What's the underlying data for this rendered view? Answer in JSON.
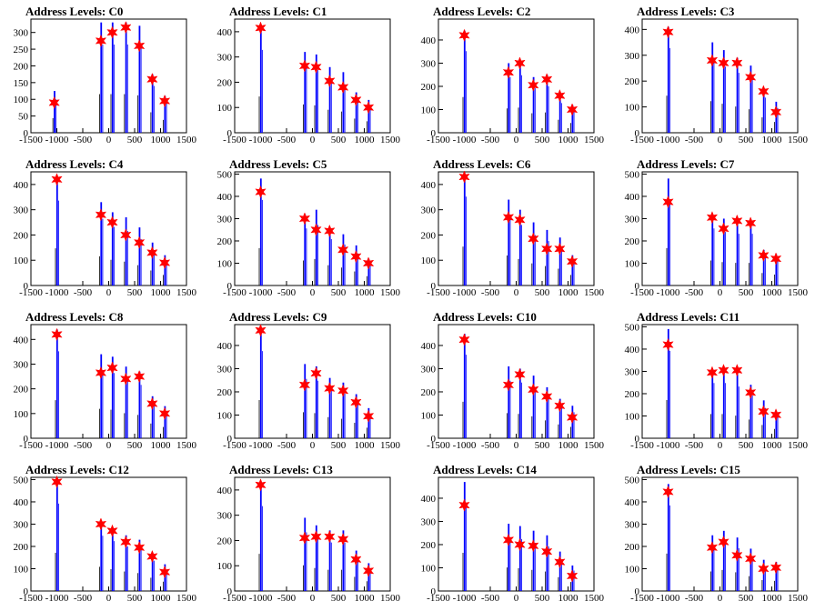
{
  "chart_data": [
    {
      "type": "histogram",
      "title": "Address Levels: C0",
      "xlim": [
        -1500,
        1500
      ],
      "ylim": [
        0,
        340
      ],
      "yticks": [
        0,
        50,
        100,
        150,
        200,
        250,
        300
      ],
      "xticks": [
        -1500,
        -1000,
        -500,
        0,
        500,
        1000,
        1500
      ],
      "peaks": [
        {
          "x": -1050,
          "height": 125,
          "marker": 90
        },
        {
          "x": -150,
          "height": 330,
          "marker": 275
        },
        {
          "x": 70,
          "height": 330,
          "marker": 300
        },
        {
          "x": 330,
          "height": 330,
          "marker": 315
        },
        {
          "x": 590,
          "height": 320,
          "marker": 260
        },
        {
          "x": 840,
          "height": 175,
          "marker": 160
        },
        {
          "x": 1080,
          "height": 110,
          "marker": 95
        }
      ]
    },
    {
      "type": "histogram",
      "title": "Address Levels: C1",
      "xlim": [
        -1500,
        1500
      ],
      "ylim": [
        0,
        450
      ],
      "yticks": [
        0,
        100,
        200,
        300,
        400
      ],
      "xticks": [
        -1500,
        -1000,
        -500,
        0,
        500,
        1000,
        1500
      ],
      "peaks": [
        {
          "x": -1000,
          "height": 410,
          "marker": 415
        },
        {
          "x": -150,
          "height": 320,
          "marker": 265
        },
        {
          "x": 70,
          "height": 310,
          "marker": 260
        },
        {
          "x": 330,
          "height": 260,
          "marker": 205
        },
        {
          "x": 590,
          "height": 240,
          "marker": 180
        },
        {
          "x": 840,
          "height": 160,
          "marker": 130
        },
        {
          "x": 1080,
          "height": 130,
          "marker": 100
        }
      ]
    },
    {
      "type": "histogram",
      "title": "Address Levels: C2",
      "xlim": [
        -1500,
        1500
      ],
      "ylim": [
        0,
        490
      ],
      "yticks": [
        0,
        100,
        200,
        300,
        400
      ],
      "xticks": [
        -1500,
        -1000,
        -500,
        0,
        500,
        1000,
        1500
      ],
      "peaks": [
        {
          "x": -1000,
          "height": 440,
          "marker": 420
        },
        {
          "x": -150,
          "height": 300,
          "marker": 260
        },
        {
          "x": 70,
          "height": 310,
          "marker": 300
        },
        {
          "x": 330,
          "height": 240,
          "marker": 205
        },
        {
          "x": 590,
          "height": 250,
          "marker": 230
        },
        {
          "x": 840,
          "height": 160,
          "marker": 160
        },
        {
          "x": 1080,
          "height": 120,
          "marker": 100
        }
      ]
    },
    {
      "type": "histogram",
      "title": "Address Levels: C3",
      "xlim": [
        -1500,
        1500
      ],
      "ylim": [
        0,
        440
      ],
      "yticks": [
        0,
        100,
        200,
        300,
        400
      ],
      "xticks": [
        -1500,
        -1000,
        -500,
        0,
        500,
        1000,
        1500
      ],
      "peaks": [
        {
          "x": -1000,
          "height": 410,
          "marker": 390
        },
        {
          "x": -150,
          "height": 350,
          "marker": 280
        },
        {
          "x": 70,
          "height": 320,
          "marker": 270
        },
        {
          "x": 330,
          "height": 290,
          "marker": 270
        },
        {
          "x": 590,
          "height": 260,
          "marker": 215
        },
        {
          "x": 840,
          "height": 170,
          "marker": 160
        },
        {
          "x": 1080,
          "height": 120,
          "marker": 80
        }
      ]
    },
    {
      "type": "histogram",
      "title": "Address Levels: C4",
      "xlim": [
        -1500,
        1500
      ],
      "ylim": [
        0,
        450
      ],
      "yticks": [
        0,
        100,
        200,
        300,
        400
      ],
      "xticks": [
        -1500,
        -1000,
        -500,
        0,
        500,
        1000,
        1500
      ],
      "peaks": [
        {
          "x": -1000,
          "height": 420,
          "marker": 420
        },
        {
          "x": -150,
          "height": 330,
          "marker": 280
        },
        {
          "x": 70,
          "height": 290,
          "marker": 250
        },
        {
          "x": 330,
          "height": 270,
          "marker": 200
        },
        {
          "x": 590,
          "height": 230,
          "marker": 170
        },
        {
          "x": 840,
          "height": 170,
          "marker": 130
        },
        {
          "x": 1080,
          "height": 120,
          "marker": 90
        }
      ]
    },
    {
      "type": "histogram",
      "title": "Address Levels: C5",
      "xlim": [
        -1500,
        1500
      ],
      "ylim": [
        0,
        510
      ],
      "yticks": [
        0,
        100,
        200,
        300,
        400,
        500
      ],
      "xticks": [
        -1500,
        -1000,
        -500,
        0,
        500,
        1000,
        1500
      ],
      "peaks": [
        {
          "x": -1000,
          "height": 480,
          "marker": 420
        },
        {
          "x": -150,
          "height": 320,
          "marker": 300
        },
        {
          "x": 70,
          "height": 340,
          "marker": 250
        },
        {
          "x": 330,
          "height": 260,
          "marker": 245
        },
        {
          "x": 590,
          "height": 230,
          "marker": 160
        },
        {
          "x": 840,
          "height": 180,
          "marker": 130
        },
        {
          "x": 1080,
          "height": 120,
          "marker": 100
        }
      ]
    },
    {
      "type": "histogram",
      "title": "Address Levels: C6",
      "xlim": [
        -1500,
        1500
      ],
      "ylim": [
        0,
        450
      ],
      "yticks": [
        0,
        100,
        200,
        300,
        400
      ],
      "xticks": [
        -1500,
        -1000,
        -500,
        0,
        500,
        1000,
        1500
      ],
      "peaks": [
        {
          "x": -1000,
          "height": 440,
          "marker": 430
        },
        {
          "x": -150,
          "height": 340,
          "marker": 270
        },
        {
          "x": 70,
          "height": 300,
          "marker": 260
        },
        {
          "x": 330,
          "height": 250,
          "marker": 185
        },
        {
          "x": 590,
          "height": 220,
          "marker": 145
        },
        {
          "x": 840,
          "height": 190,
          "marker": 145
        },
        {
          "x": 1080,
          "height": 120,
          "marker": 95
        }
      ]
    },
    {
      "type": "histogram",
      "title": "Address Levels: C7",
      "xlim": [
        -1500,
        1500
      ],
      "ylim": [
        0,
        510
      ],
      "yticks": [
        0,
        100,
        200,
        300,
        400,
        500
      ],
      "xticks": [
        -1500,
        -1000,
        -500,
        0,
        500,
        1000,
        1500
      ],
      "peaks": [
        {
          "x": -1000,
          "height": 480,
          "marker": 375
        },
        {
          "x": -150,
          "height": 320,
          "marker": 305
        },
        {
          "x": 70,
          "height": 300,
          "marker": 255
        },
        {
          "x": 330,
          "height": 290,
          "marker": 290
        },
        {
          "x": 590,
          "height": 290,
          "marker": 280
        },
        {
          "x": 840,
          "height": 160,
          "marker": 135
        },
        {
          "x": 1080,
          "height": 140,
          "marker": 120
        }
      ]
    },
    {
      "type": "histogram",
      "title": "Address Levels: C8",
      "xlim": [
        -1500,
        1500
      ],
      "ylim": [
        0,
        460
      ],
      "yticks": [
        0,
        100,
        200,
        300,
        400
      ],
      "xticks": [
        -1500,
        -1000,
        -500,
        0,
        500,
        1000,
        1500
      ],
      "peaks": [
        {
          "x": -1000,
          "height": 440,
          "marker": 420
        },
        {
          "x": -150,
          "height": 340,
          "marker": 265
        },
        {
          "x": 70,
          "height": 330,
          "marker": 285
        },
        {
          "x": 330,
          "height": 290,
          "marker": 240
        },
        {
          "x": 590,
          "height": 270,
          "marker": 250
        },
        {
          "x": 840,
          "height": 170,
          "marker": 140
        },
        {
          "x": 1080,
          "height": 130,
          "marker": 100
        }
      ]
    },
    {
      "type": "histogram",
      "title": "Address Levels: C9",
      "xlim": [
        -1500,
        1500
      ],
      "ylim": [
        0,
        490
      ],
      "yticks": [
        0,
        100,
        200,
        300,
        400
      ],
      "xticks": [
        -1500,
        -1000,
        -500,
        0,
        500,
        1000,
        1500
      ],
      "peaks": [
        {
          "x": -1000,
          "height": 470,
          "marker": 465
        },
        {
          "x": -150,
          "height": 320,
          "marker": 230
        },
        {
          "x": 70,
          "height": 310,
          "marker": 280
        },
        {
          "x": 330,
          "height": 260,
          "marker": 215
        },
        {
          "x": 590,
          "height": 240,
          "marker": 205
        },
        {
          "x": 840,
          "height": 190,
          "marker": 155
        },
        {
          "x": 1080,
          "height": 130,
          "marker": 95
        }
      ]
    },
    {
      "type": "histogram",
      "title": "Address Levels: C10",
      "xlim": [
        -1500,
        1500
      ],
      "ylim": [
        0,
        490
      ],
      "yticks": [
        0,
        100,
        200,
        300,
        400
      ],
      "xticks": [
        -1500,
        -1000,
        -500,
        0,
        500,
        1000,
        1500
      ],
      "peaks": [
        {
          "x": -1000,
          "height": 450,
          "marker": 425
        },
        {
          "x": -150,
          "height": 310,
          "marker": 230
        },
        {
          "x": 70,
          "height": 300,
          "marker": 275
        },
        {
          "x": 330,
          "height": 270,
          "marker": 210
        },
        {
          "x": 590,
          "height": 220,
          "marker": 180
        },
        {
          "x": 840,
          "height": 170,
          "marker": 140
        },
        {
          "x": 1080,
          "height": 140,
          "marker": 90
        }
      ]
    },
    {
      "type": "histogram",
      "title": "Address Levels: C11",
      "xlim": [
        -1500,
        1500
      ],
      "ylim": [
        0,
        510
      ],
      "yticks": [
        0,
        100,
        200,
        300,
        400,
        500
      ],
      "xticks": [
        -1500,
        -1000,
        -500,
        0,
        500,
        1000,
        1500
      ],
      "peaks": [
        {
          "x": -1000,
          "height": 490,
          "marker": 420
        },
        {
          "x": -150,
          "height": 310,
          "marker": 295
        },
        {
          "x": 70,
          "height": 310,
          "marker": 305
        },
        {
          "x": 330,
          "height": 290,
          "marker": 305
        },
        {
          "x": 590,
          "height": 240,
          "marker": 205
        },
        {
          "x": 840,
          "height": 170,
          "marker": 120
        },
        {
          "x": 1080,
          "height": 120,
          "marker": 105
        }
      ]
    },
    {
      "type": "histogram",
      "title": "Address Levels: C12",
      "xlim": [
        -1500,
        1500
      ],
      "ylim": [
        0,
        510
      ],
      "yticks": [
        0,
        100,
        200,
        300,
        400,
        500
      ],
      "xticks": [
        -1500,
        -1000,
        -500,
        0,
        500,
        1000,
        1500
      ],
      "peaks": [
        {
          "x": -1000,
          "height": 490,
          "marker": 490
        },
        {
          "x": -150,
          "height": 310,
          "marker": 300
        },
        {
          "x": 70,
          "height": 280,
          "marker": 270
        },
        {
          "x": 330,
          "height": 250,
          "marker": 220
        },
        {
          "x": 590,
          "height": 230,
          "marker": 195
        },
        {
          "x": 840,
          "height": 170,
          "marker": 155
        },
        {
          "x": 1080,
          "height": 120,
          "marker": 85
        }
      ]
    },
    {
      "type": "histogram",
      "title": "Address Levels: C13",
      "xlim": [
        -1500,
        1500
      ],
      "ylim": [
        0,
        450
      ],
      "yticks": [
        0,
        100,
        200,
        300,
        400
      ],
      "xticks": [
        -1500,
        -1000,
        -500,
        0,
        500,
        1000,
        1500
      ],
      "peaks": [
        {
          "x": -1000,
          "height": 420,
          "marker": 420
        },
        {
          "x": -150,
          "height": 290,
          "marker": 210
        },
        {
          "x": 70,
          "height": 260,
          "marker": 215
        },
        {
          "x": 330,
          "height": 240,
          "marker": 215
        },
        {
          "x": 590,
          "height": 240,
          "marker": 205
        },
        {
          "x": 840,
          "height": 160,
          "marker": 125
        },
        {
          "x": 1080,
          "height": 110,
          "marker": 80
        }
      ]
    },
    {
      "type": "histogram",
      "title": "Address Levels: C14",
      "xlim": [
        -1500,
        1500
      ],
      "ylim": [
        0,
        490
      ],
      "yticks": [
        0,
        100,
        200,
        300,
        400
      ],
      "xticks": [
        -1500,
        -1000,
        -500,
        0,
        500,
        1000,
        1500
      ],
      "peaks": [
        {
          "x": -1000,
          "height": 470,
          "marker": 370
        },
        {
          "x": -150,
          "height": 290,
          "marker": 220
        },
        {
          "x": 70,
          "height": 280,
          "marker": 200
        },
        {
          "x": 330,
          "height": 260,
          "marker": 195
        },
        {
          "x": 590,
          "height": 240,
          "marker": 170
        },
        {
          "x": 840,
          "height": 170,
          "marker": 125
        },
        {
          "x": 1080,
          "height": 110,
          "marker": 65
        }
      ]
    },
    {
      "type": "histogram",
      "title": "Address Levels: C15",
      "xlim": [
        -1500,
        1500
      ],
      "ylim": [
        0,
        510
      ],
      "yticks": [
        0,
        100,
        200,
        300,
        400,
        500
      ],
      "xticks": [
        -1500,
        -1000,
        -500,
        0,
        500,
        1000,
        1500
      ],
      "peaks": [
        {
          "x": -1000,
          "height": 480,
          "marker": 445
        },
        {
          "x": -150,
          "height": 250,
          "marker": 195
        },
        {
          "x": 70,
          "height": 270,
          "marker": 220
        },
        {
          "x": 330,
          "height": 240,
          "marker": 160
        },
        {
          "x": 590,
          "height": 190,
          "marker": 145
        },
        {
          "x": 840,
          "height": 140,
          "marker": 100
        },
        {
          "x": 1080,
          "height": 130,
          "marker": 105
        }
      ]
    }
  ],
  "colors": {
    "hist": "#0000ff",
    "spike": "#000000",
    "marker": "#ff0000",
    "axis": "#000000"
  }
}
